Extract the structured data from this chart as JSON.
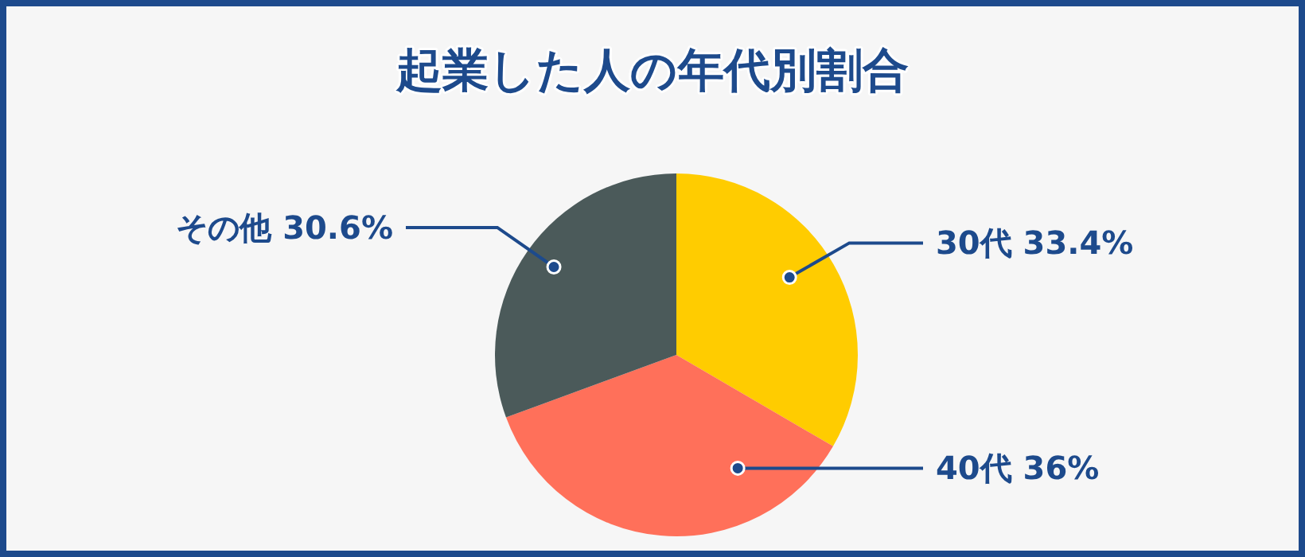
{
  "chart_data": {
    "type": "pie",
    "title": "起業した人の年代別割合",
    "categories": [
      "30代",
      "40代",
      "その他"
    ],
    "values": [
      33.4,
      36,
      30.6
    ],
    "value_labels": [
      "33.4%",
      "36%",
      "30.6%"
    ],
    "colors": [
      "#ffcc00",
      "#ff705a",
      "#4b5a5a"
    ]
  }
}
